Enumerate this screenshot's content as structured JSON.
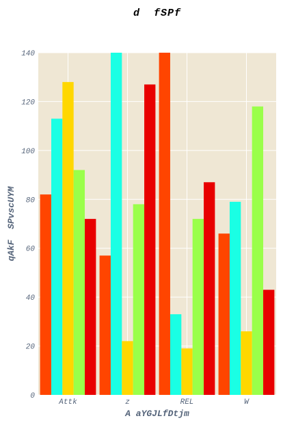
{
  "chart_data": {
    "type": "bar",
    "title": "d  fSPf",
    "xlabel": "A aYGJLfDtjm",
    "ylabel": "qAkF  SPvscUYM",
    "categories": [
      "Attk",
      "z",
      "REL",
      "W"
    ],
    "ylim": [
      0,
      140
    ],
    "yticks": [
      0,
      20,
      40,
      60,
      80,
      100,
      120,
      140
    ],
    "grid": true,
    "legend": "none",
    "background": "#efe7d4",
    "series": [
      {
        "color": "#ff4500",
        "values": [
          82,
          57,
          140,
          66
        ]
      },
      {
        "color": "#1affe4",
        "values": [
          113,
          140,
          33,
          79
        ]
      },
      {
        "color": "#ffd700",
        "values": [
          128,
          22,
          19,
          26
        ]
      },
      {
        "color": "#9aff4a",
        "values": [
          92,
          78,
          72,
          118
        ]
      },
      {
        "color": "#e80000",
        "values": [
          72,
          127,
          87,
          43
        ]
      }
    ]
  }
}
